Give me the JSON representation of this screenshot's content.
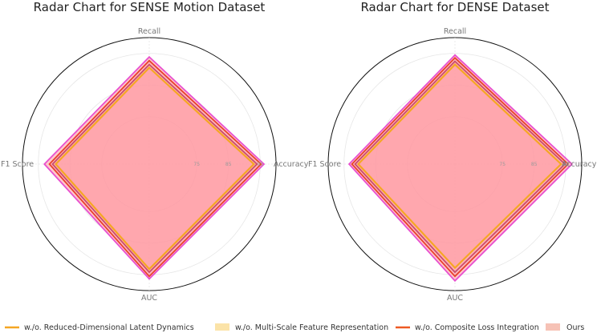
{
  "chart_data": [
    {
      "type": "radar",
      "title": "Radar Chart for SENSE Motion Dataset",
      "axes": [
        "Recall",
        "Accuracy",
        "AUC",
        "F1 Score"
      ],
      "radial_ticks": [
        "75",
        "85",
        "95"
      ],
      "rlim": [
        60,
        100
      ],
      "series": [
        {
          "name": "w./o. Reduced-Dimensional Latent Dynamics",
          "values": [
            90.5,
            93.0,
            93.2,
            89.5
          ]
        },
        {
          "name": "w./o. Multi-Scale Feature Representation",
          "values": [
            91.5,
            94.0,
            94.2,
            90.5
          ]
        },
        {
          "name": "w./o. Composite Loss Integration",
          "values": [
            92.7,
            95.3,
            95.5,
            91.5
          ]
        },
        {
          "name": "Ours",
          "values": [
            93.9,
            96.2,
            96.3,
            93.1
          ]
        }
      ]
    },
    {
      "type": "radar",
      "title": "Radar Chart for DENSE Dataset",
      "axes": [
        "Recall",
        "Accuracy",
        "AUC",
        "F1 Score"
      ],
      "radial_ticks": [
        "75",
        "85",
        "95"
      ],
      "rlim": [
        60,
        100
      ],
      "series": [
        {
          "name": "w./o. Reduced-Dimensional Latent Dynamics",
          "values": [
            91.5,
            93.5,
            92.8,
            90.5
          ]
        },
        {
          "name": "w./o. Multi-Scale Feature Representation",
          "values": [
            92.5,
            94.7,
            94.2,
            91.5
          ]
        },
        {
          "name": "w./o. Composite Loss Integration",
          "values": [
            93.6,
            95.7,
            95.5,
            92.5
          ]
        },
        {
          "name": "Ours",
          "values": [
            94.5,
            96.9,
            96.9,
            93.4
          ]
        }
      ]
    }
  ],
  "style": {
    "series_colors": [
      "#f5a623",
      "#fbd98a",
      "#ee5a24",
      "#f4a9a0"
    ],
    "series_edge_colors": [
      "#f5a623",
      "#c94c6b",
      "#e8402c",
      "#e84fcf"
    ],
    "fill_color": "#ff9aa2"
  }
}
